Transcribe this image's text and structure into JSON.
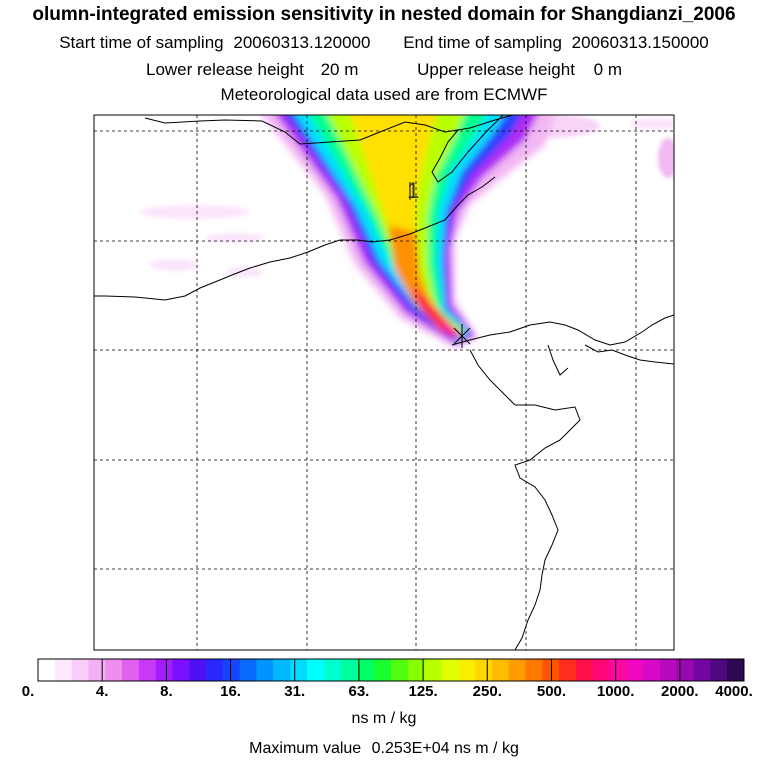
{
  "header": {
    "title": "olumn-integrated emission sensitivity in nested domain for Shangdianzi_2006",
    "start_label": "Start time of sampling",
    "start_value": "20060313.120000",
    "end_label": "End time of sampling",
    "end_value": "20060313.150000",
    "lower_label": "Lower release height",
    "lower_value": "20 m",
    "upper_label": "Upper release height",
    "upper_value": "0 m",
    "met_line": "Meteorological data used are from ECMWF"
  },
  "map": {
    "plume_label": "1",
    "receptor": "Shangdianzi_2006"
  },
  "colorbar": {
    "tick_labels": [
      "0.",
      "4.",
      "8.",
      "16.",
      "31.",
      "63.",
      "125.",
      "250.",
      "500.",
      "1000.",
      "2000.",
      "4000."
    ],
    "colors": [
      "#ffffff",
      "#fde8fd",
      "#f9cdf9",
      "#f4b0f4",
      "#ee8fee",
      "#e060f0",
      "#c838f8",
      "#a41cff",
      "#7a10ff",
      "#4e10f4",
      "#2828ff",
      "#1446ff",
      "#0a6cff",
      "#0094ff",
      "#00b8ff",
      "#00dcff",
      "#00ffff",
      "#00ffd0",
      "#00ffa0",
      "#00ff64",
      "#18ff30",
      "#50ff10",
      "#88ff00",
      "#b8ff00",
      "#e0ff00",
      "#f8f000",
      "#ffd800",
      "#ffbc00",
      "#ff9c00",
      "#ff7800",
      "#ff5400",
      "#ff2c20",
      "#ff1048",
      "#ff0878",
      "#ff08a0",
      "#f008c0",
      "#d808c8",
      "#b808c0",
      "#9808b0",
      "#7008a0",
      "#4e0880",
      "#2e0850"
    ],
    "unit": "ns m / kg",
    "max_label": "Maximum value",
    "max_value": "0.253E+04 ns m / kg"
  },
  "colors": {
    "grid": "#000000",
    "coast": "#000000",
    "background": "#ffffff"
  }
}
